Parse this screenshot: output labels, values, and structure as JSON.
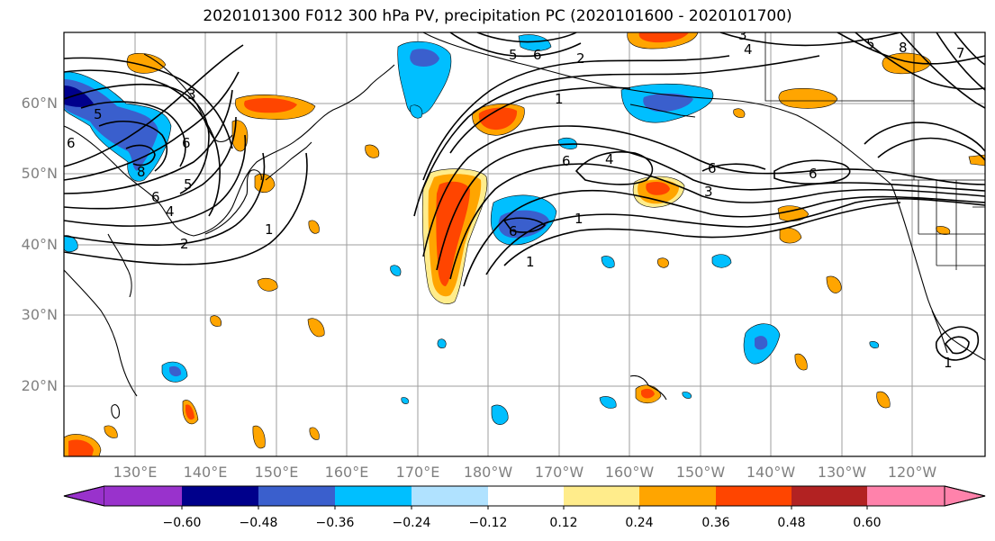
{
  "title": "2020101300 F012 300 hPa PV, precipitation PC (2020101600 - 2020101700)",
  "map": {
    "lat_labels": [
      "60°N",
      "50°N",
      "40°N",
      "30°N",
      "20°N"
    ],
    "lon_labels": [
      "130°E",
      "140°E",
      "150°E",
      "160°E",
      "170°E",
      "180°W",
      "170°W",
      "160°W",
      "150°W",
      "140°W",
      "130°W",
      "120°W"
    ],
    "contour_labels": [
      "3",
      "5",
      "6",
      "8",
      "6",
      "5",
      "4",
      "2",
      "1",
      "6",
      "5",
      "6",
      "1",
      "6",
      "4",
      "6",
      "3",
      "1",
      "4",
      "3",
      "5",
      "8",
      "6",
      "1",
      "7",
      "6",
      "2",
      "1"
    ]
  },
  "colorbar": {
    "ticks": [
      "−0.60",
      "−0.48",
      "−0.36",
      "−0.24",
      "−0.12",
      "0.12",
      "0.24",
      "0.36",
      "0.48",
      "0.60"
    ],
    "colors": [
      "#9932cc",
      "#00008b",
      "#3a5fcd",
      "#00bfff",
      "#b0e2ff",
      "#ffffff",
      "#ffec8b",
      "#ffa500",
      "#ff4500",
      "#b22222",
      "#ff82ab"
    ]
  }
}
